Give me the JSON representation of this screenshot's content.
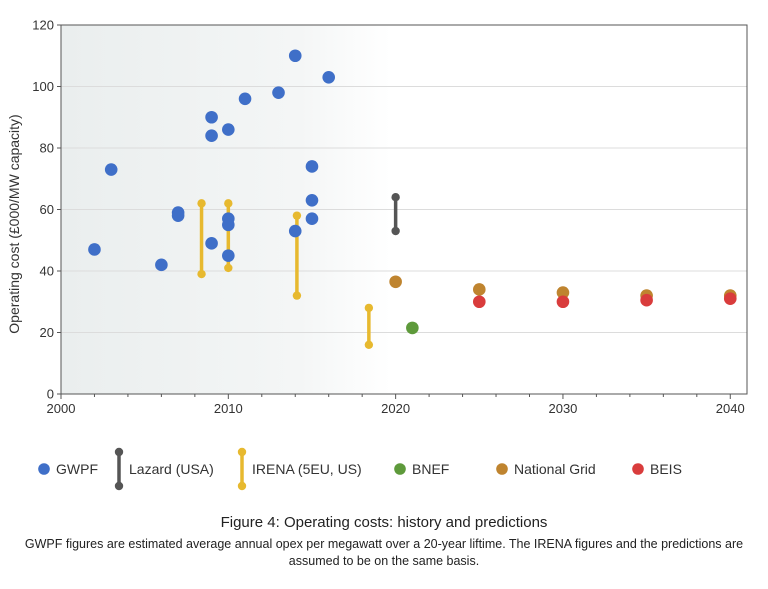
{
  "chart_data": {
    "type": "scatter",
    "xlabel": "",
    "ylabel": "Operating cost (£000/MW capacity)",
    "xlim": [
      2000,
      2041
    ],
    "ylim": [
      0,
      120
    ],
    "xticks": [
      2000,
      2010,
      2020,
      2030,
      2040
    ],
    "yticks": [
      0,
      20,
      40,
      60,
      80,
      100,
      120
    ],
    "grid": "horizontal",
    "legend_position": "bottom",
    "series": [
      {
        "name": "GWPF",
        "kind": "points",
        "color": "#3f6fc8",
        "points": [
          {
            "x": 2002,
            "y": 47
          },
          {
            "x": 2003,
            "y": 73
          },
          {
            "x": 2006,
            "y": 42
          },
          {
            "x": 2007,
            "y": 59
          },
          {
            "x": 2007,
            "y": 58
          },
          {
            "x": 2009,
            "y": 90
          },
          {
            "x": 2009,
            "y": 84
          },
          {
            "x": 2009,
            "y": 49
          },
          {
            "x": 2010,
            "y": 86
          },
          {
            "x": 2010,
            "y": 57
          },
          {
            "x": 2010,
            "y": 55
          },
          {
            "x": 2010,
            "y": 45
          },
          {
            "x": 2011,
            "y": 96
          },
          {
            "x": 2013,
            "y": 98
          },
          {
            "x": 2014,
            "y": 110
          },
          {
            "x": 2014,
            "y": 53
          },
          {
            "x": 2015,
            "y": 74
          },
          {
            "x": 2015,
            "y": 63
          },
          {
            "x": 2015,
            "y": 57
          },
          {
            "x": 2016,
            "y": 103
          }
        ]
      },
      {
        "name": "Lazard (USA)",
        "kind": "range",
        "color": "#555555",
        "ranges": [
          {
            "x": 2020,
            "low": 53,
            "high": 64
          }
        ]
      },
      {
        "name": "IRENA (5EU, US)",
        "kind": "range",
        "color": "#e7b92f",
        "ranges": [
          {
            "x": 2008.4,
            "low": 39,
            "high": 62
          },
          {
            "x": 2010,
            "low": 41,
            "high": 62
          },
          {
            "x": 2014.1,
            "low": 32,
            "high": 58
          },
          {
            "x": 2018.4,
            "low": 16,
            "high": 28
          }
        ]
      },
      {
        "name": "BNEF",
        "kind": "points",
        "color": "#5e9a3b",
        "points": [
          {
            "x": 2021,
            "y": 21.5
          }
        ]
      },
      {
        "name": "National Grid",
        "kind": "points",
        "color": "#bf842f",
        "points": [
          {
            "x": 2020,
            "y": 36.5
          },
          {
            "x": 2025,
            "y": 34
          },
          {
            "x": 2030,
            "y": 33
          },
          {
            "x": 2035,
            "y": 32
          },
          {
            "x": 2040,
            "y": 32
          }
        ]
      },
      {
        "name": "BEIS",
        "kind": "points",
        "color": "#d93c3c",
        "points": [
          {
            "x": 2025,
            "y": 30
          },
          {
            "x": 2030,
            "y": 30
          },
          {
            "x": 2035,
            "y": 30.5
          },
          {
            "x": 2040,
            "y": 31
          }
        ]
      }
    ]
  },
  "figure": {
    "title": "Figure 4: Operating costs: history and predictions",
    "note": "GWPF figures are estimated average annual opex per megawatt over a 20-year liftime. The IRENA figures and the predictions are assumed to be on the same basis."
  }
}
